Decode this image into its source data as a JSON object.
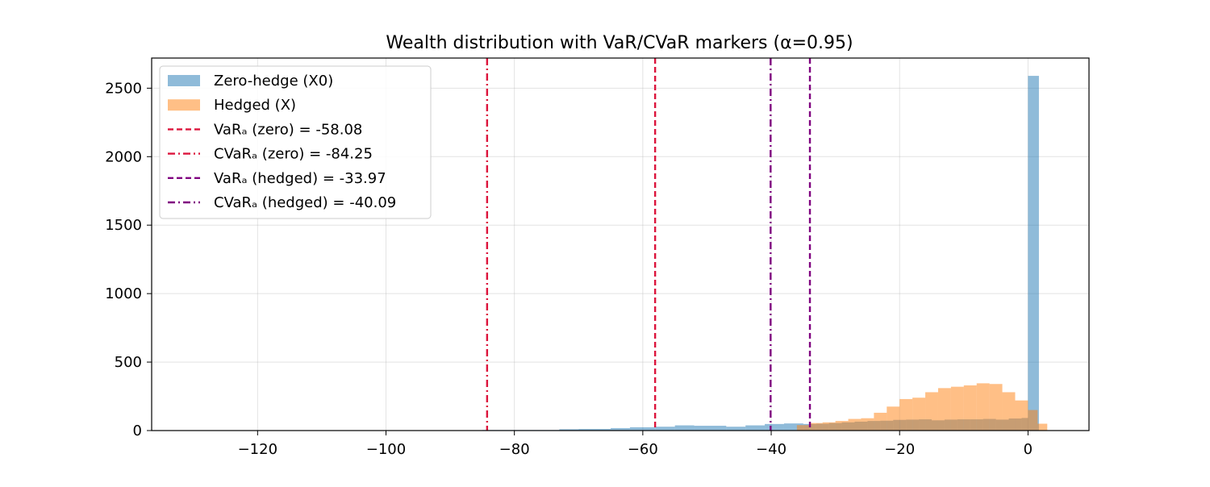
{
  "chart_data": {
    "type": "bar",
    "title": "Wealth distribution with VaR/CVaR markers (α=0.95)",
    "xlabel": "",
    "ylabel": "",
    "xlim": [
      -136.5,
      9.5
    ],
    "ylim": [
      0,
      2720
    ],
    "grid": true,
    "legend_position": "top-left",
    "x_ticks": [
      -120,
      -100,
      -80,
      -60,
      -40,
      -20,
      0
    ],
    "x_tick_labels": [
      "−120",
      "−100",
      "−80",
      "−60",
      "−40",
      "−20",
      "0"
    ],
    "y_ticks": [
      0,
      500,
      1000,
      1500,
      2000,
      2500
    ],
    "y_tick_labels": [
      "0",
      "500",
      "1000",
      "1500",
      "2000",
      "2500"
    ],
    "series": [
      {
        "name": "Zero-hedge (X0)",
        "color": "#1f77b4",
        "opacity": 0.5,
        "bins": [
          [
            -133,
            -85,
            2
          ],
          [
            -85,
            -73,
            4
          ],
          [
            -73,
            -70,
            10
          ],
          [
            -70,
            -65,
            12
          ],
          [
            -65,
            -62,
            18
          ],
          [
            -62,
            -58,
            24
          ],
          [
            -58,
            -55,
            28
          ],
          [
            -55,
            -52,
            38
          ],
          [
            -52,
            -47,
            35
          ],
          [
            -47,
            -44,
            28
          ],
          [
            -44,
            -41,
            38
          ],
          [
            -41,
            -38,
            48
          ],
          [
            -38,
            -35,
            52
          ],
          [
            -35,
            -33,
            48
          ],
          [
            -33,
            -31,
            50
          ],
          [
            -31,
            -29,
            55
          ],
          [
            -29,
            -27,
            60
          ],
          [
            -27,
            -25,
            65
          ],
          [
            -25,
            -23,
            70
          ],
          [
            -23,
            -21,
            72
          ],
          [
            -21,
            -19,
            78
          ],
          [
            -19,
            -17,
            80
          ],
          [
            -17,
            -15,
            82
          ],
          [
            -15,
            -13,
            75
          ],
          [
            -13,
            -11,
            80
          ],
          [
            -11,
            -9,
            82
          ],
          [
            -9,
            -7,
            82
          ],
          [
            -7,
            -5,
            85
          ],
          [
            -5,
            -3,
            80
          ],
          [
            -3,
            -1,
            88
          ],
          [
            -1,
            0,
            92
          ],
          [
            0,
            1.7,
            2590
          ]
        ]
      },
      {
        "name": "Hedged (X)",
        "color": "#ff7f0e",
        "opacity": 0.5,
        "bins": [
          [
            -38,
            -36,
            2
          ],
          [
            -36,
            -34,
            40
          ],
          [
            -34,
            -32,
            55
          ],
          [
            -32,
            -30,
            60
          ],
          [
            -30,
            -28,
            70
          ],
          [
            -28,
            -26,
            85
          ],
          [
            -26,
            -24,
            90
          ],
          [
            -24,
            -22,
            130
          ],
          [
            -22,
            -20,
            175
          ],
          [
            -20,
            -18,
            230
          ],
          [
            -18,
            -16,
            240
          ],
          [
            -16,
            -14,
            280
          ],
          [
            -14,
            -12,
            310
          ],
          [
            -12,
            -10,
            320
          ],
          [
            -10,
            -8,
            330
          ],
          [
            -8,
            -6,
            345
          ],
          [
            -6,
            -4,
            340
          ],
          [
            -4,
            -2,
            280
          ],
          [
            -2,
            0,
            220
          ],
          [
            0,
            1.5,
            150
          ],
          [
            1.5,
            3,
            50
          ]
        ]
      }
    ],
    "vlines": [
      {
        "name": "VaRₐ (zero) = -58.08",
        "x": -58.08,
        "color": "#dc143c",
        "style": "dashed"
      },
      {
        "name": "CVaRₐ (zero) = -84.25",
        "x": -84.25,
        "color": "#dc143c",
        "style": "dashdot"
      },
      {
        "name": "VaRₐ (hedged) = -33.97",
        "x": -33.97,
        "color": "#800080",
        "style": "dashed"
      },
      {
        "name": "CVaRₐ (hedged) = -40.09",
        "x": -40.09,
        "color": "#800080",
        "style": "dashdot"
      }
    ]
  }
}
